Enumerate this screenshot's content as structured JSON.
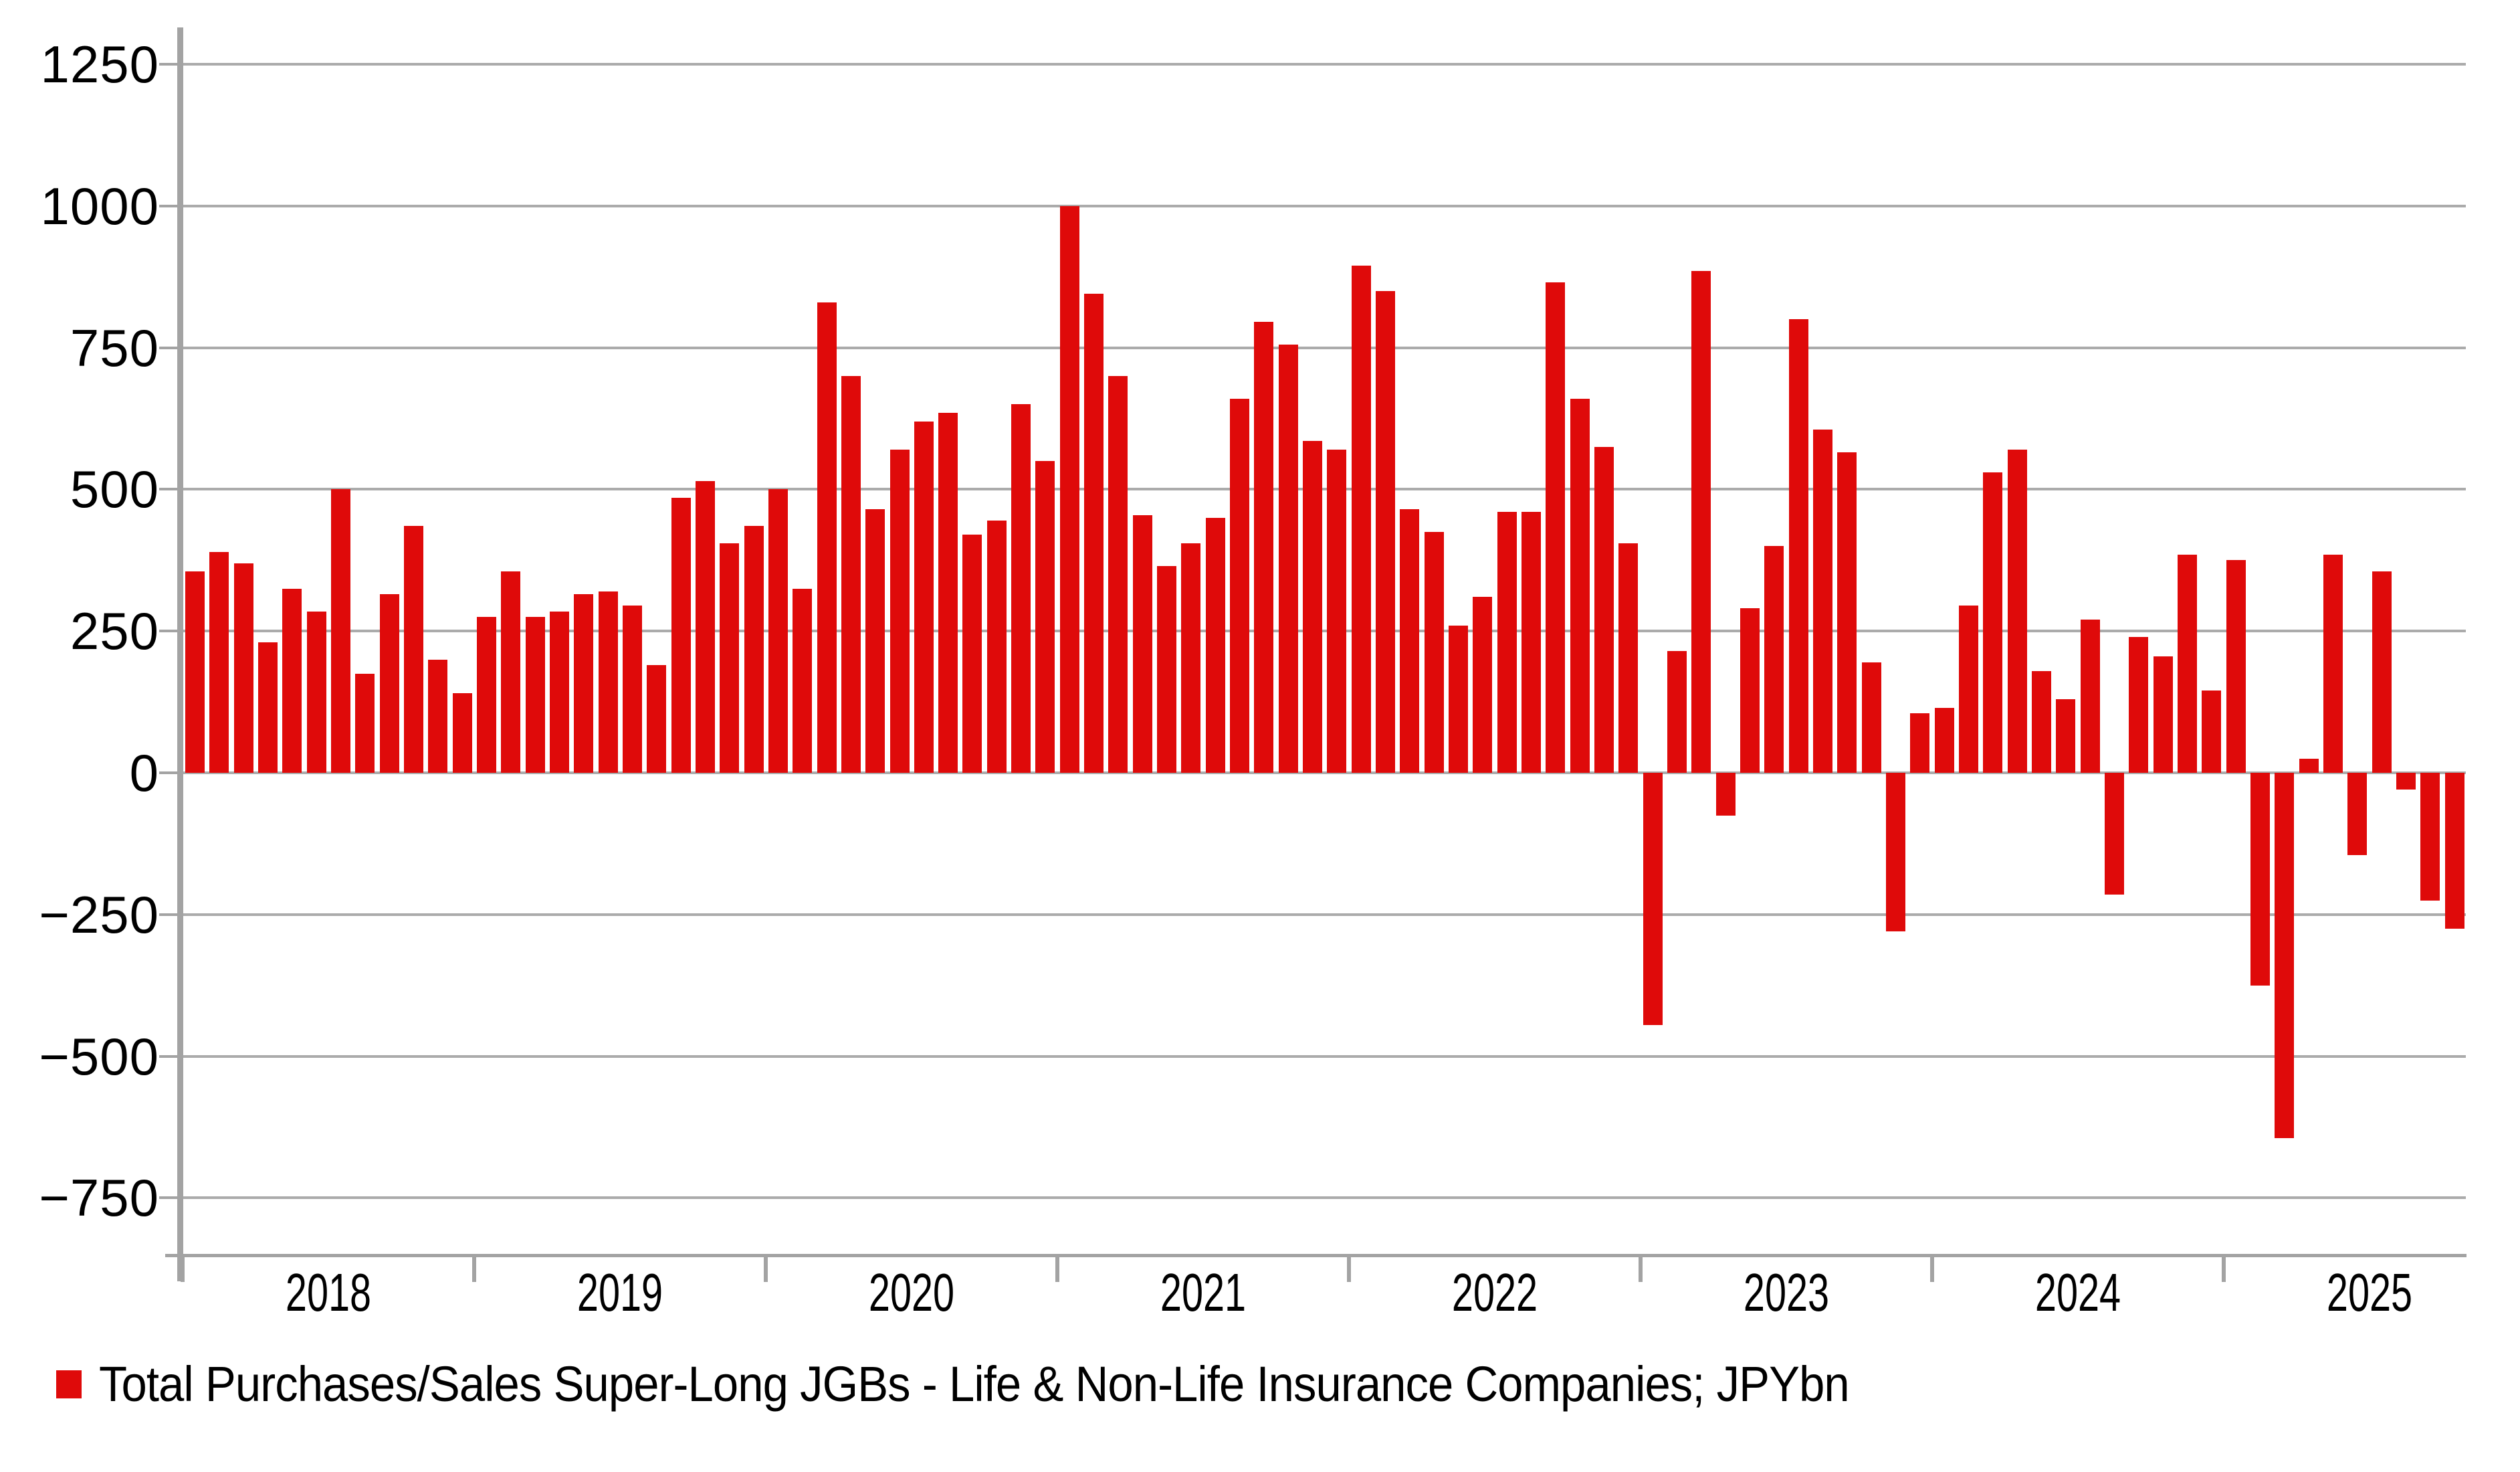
{
  "colors": {
    "bar": "#df0a0a",
    "gridline": "#ababab",
    "axis": "#a3a3a3",
    "text": "#000000",
    "background": "#ffffff"
  },
  "legend": {
    "label": "Total Purchases/Sales Super-Long JGBs - Life & Non-Life Insurance Companies; JPYbn"
  },
  "y_axis": {
    "tick_values": [
      1250,
      1000,
      750,
      500,
      250,
      0,
      -250,
      -500,
      -750
    ],
    "tick_labels": [
      "1250",
      "1000",
      "750",
      "500",
      "250",
      "0",
      "−250",
      "−500",
      "−750"
    ]
  },
  "x_axis": {
    "year_labels": [
      "2018",
      "2019",
      "2020",
      "2021",
      "2022",
      "2023",
      "2024",
      "2025"
    ]
  },
  "chart_data": {
    "type": "bar",
    "title": "",
    "xlabel": "",
    "ylabel": "JPYbn",
    "ylim": [
      -750,
      1250
    ],
    "grid": true,
    "legend_position": "bottom-left",
    "series_name": "Total Purchases/Sales Super-Long JGBs - Life & Non-Life Insurance Companies; JPYbn",
    "x": [
      "2018-01",
      "2018-02",
      "2018-03",
      "2018-04",
      "2018-05",
      "2018-06",
      "2018-07",
      "2018-08",
      "2018-09",
      "2018-10",
      "2018-11",
      "2018-12",
      "2019-01",
      "2019-02",
      "2019-03",
      "2019-04",
      "2019-05",
      "2019-06",
      "2019-07",
      "2019-08",
      "2019-09",
      "2019-10",
      "2019-11",
      "2019-12",
      "2020-01",
      "2020-02",
      "2020-03",
      "2020-04",
      "2020-05",
      "2020-06",
      "2020-07",
      "2020-08",
      "2020-09",
      "2020-10",
      "2020-11",
      "2020-12",
      "2021-01",
      "2021-02",
      "2021-03",
      "2021-04",
      "2021-05",
      "2021-06",
      "2021-07",
      "2021-08",
      "2021-09",
      "2021-10",
      "2021-11",
      "2021-12",
      "2022-01",
      "2022-02",
      "2022-03",
      "2022-04",
      "2022-05",
      "2022-06",
      "2022-07",
      "2022-08",
      "2022-09",
      "2022-10",
      "2022-11",
      "2022-12",
      "2023-01",
      "2023-02",
      "2023-03",
      "2023-04",
      "2023-05",
      "2023-06",
      "2023-07",
      "2023-08",
      "2023-09",
      "2023-10",
      "2023-11",
      "2023-12",
      "2024-01",
      "2024-02",
      "2024-03",
      "2024-04",
      "2024-05",
      "2024-06",
      "2024-07",
      "2024-08",
      "2024-09",
      "2024-10",
      "2024-11",
      "2024-12",
      "2025-01",
      "2025-02",
      "2025-03",
      "2025-04",
      "2025-05",
      "2025-06",
      "2025-07",
      "2025-08",
      "2025-09",
      "2025-10"
    ],
    "values": [
      355,
      390,
      370,
      230,
      325,
      285,
      500,
      175,
      315,
      435,
      200,
      140,
      275,
      355,
      275,
      285,
      315,
      320,
      295,
      190,
      485,
      515,
      405,
      435,
      500,
      325,
      830,
      700,
      465,
      570,
      620,
      635,
      420,
      445,
      650,
      550,
      1000,
      845,
      700,
      455,
      365,
      405,
      450,
      660,
      795,
      755,
      585,
      570,
      895,
      850,
      465,
      425,
      260,
      310,
      460,
      460,
      865,
      660,
      575,
      405,
      -445,
      215,
      885,
      -75,
      290,
      400,
      800,
      605,
      565,
      195,
      -280,
      105,
      115,
      295,
      530,
      570,
      180,
      130,
      270,
      -215,
      240,
      205,
      385,
      145,
      375,
      -375,
      -645,
      25,
      385,
      -145,
      355,
      -30,
      -225,
      -275
    ]
  }
}
